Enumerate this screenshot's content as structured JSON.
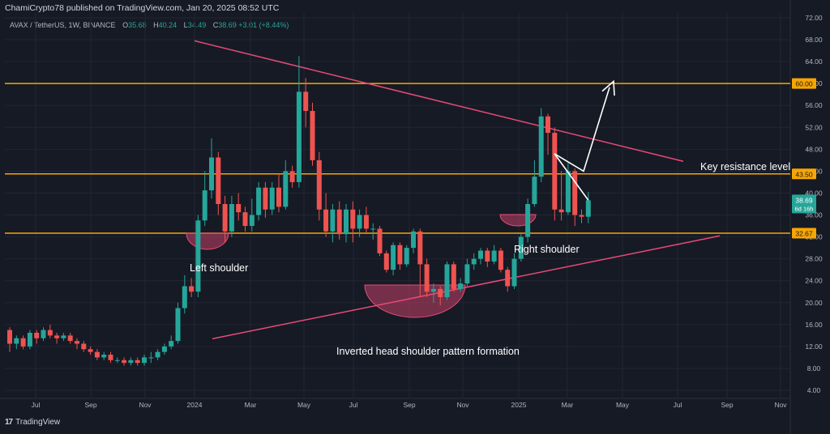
{
  "header": {
    "published": "ChamiCrypto78 published on TradingView.com, Jan 20, 2025 08:52 UTC",
    "symbol": "AVAX / TetherUS, 1W, BINANCE",
    "ohlc": [
      {
        "k": "O",
        "v": "35.68"
      },
      {
        "k": "H",
        "v": "40.24"
      },
      {
        "k": "L",
        "v": "34.49"
      },
      {
        "k": "C",
        "v": "38.69"
      }
    ],
    "change": "+3.01 (+8.44%)"
  },
  "footer": {
    "logo_text": "TradingView",
    "logo_mark": "17"
  },
  "colors": {
    "background": "#161a25",
    "up": "#26a69a",
    "down": "#ef5350",
    "orange": "#f7a600",
    "trend": "#e84a76",
    "grid": "#232632",
    "text": "#d1d4dc"
  },
  "chart_data": {
    "type": "candlestick",
    "ylim": [
      4,
      72
    ],
    "y_ticks": [
      "72.00",
      "68.00",
      "64.00",
      "60.00",
      "56.00",
      "52.00",
      "48.00",
      "44.00",
      "40.00",
      "36.00",
      "32.00",
      "28.00",
      "24.00",
      "20.00",
      "16.00",
      "12.00",
      "8.00",
      "4.00"
    ],
    "x_ticks": [
      "Jul",
      "Sep",
      "Nov",
      "2024",
      "Mar",
      "May",
      "Jul",
      "Sep",
      "Nov",
      "2025",
      "Mar",
      "May",
      "Jul",
      "Sep",
      "Nov"
    ],
    "candles": [
      [
        15,
        12.5,
        15.5,
        11
      ],
      [
        12.5,
        13.5,
        14,
        11.5
      ],
      [
        13.5,
        12,
        14,
        11.5
      ],
      [
        12,
        14.5,
        15,
        11.5
      ],
      [
        14.5,
        13.5,
        15,
        12.5
      ],
      [
        13.5,
        15,
        15.5,
        13
      ],
      [
        15,
        14,
        16,
        13.5
      ],
      [
        14,
        13.5,
        14.5,
        12.5
      ],
      [
        13.5,
        14,
        14.5,
        13
      ],
      [
        14,
        13,
        14.5,
        12.5
      ],
      [
        13,
        12.5,
        13.5,
        11.5
      ],
      [
        12.5,
        11.5,
        13,
        11
      ],
      [
        11.5,
        11,
        12,
        10.5
      ],
      [
        11,
        10,
        11.5,
        9.5
      ],
      [
        10,
        10.5,
        11,
        9.5
      ],
      [
        10.5,
        9.5,
        11,
        9
      ],
      [
        9.5,
        9.5,
        10,
        9
      ],
      [
        9.5,
        9,
        10,
        8.5
      ],
      [
        9,
        9.5,
        10,
        8.5
      ],
      [
        9.5,
        9,
        10,
        8.5
      ],
      [
        9,
        10,
        10.5,
        8.5
      ],
      [
        10,
        10,
        11,
        9
      ],
      [
        10,
        11,
        11.5,
        9.5
      ],
      [
        11,
        12,
        12.5,
        10.5
      ],
      [
        12,
        13,
        14,
        11.5
      ],
      [
        13,
        19,
        20,
        12.5
      ],
      [
        19,
        23,
        25,
        18
      ],
      [
        23,
        22,
        24.5,
        21
      ],
      [
        22,
        35,
        36,
        21
      ],
      [
        35,
        40.5,
        44,
        34
      ],
      [
        40.5,
        46.5,
        50,
        39
      ],
      [
        46.5,
        38,
        47.5,
        36
      ],
      [
        38,
        33,
        39.5,
        31
      ],
      [
        33,
        38,
        39.5,
        32
      ],
      [
        38,
        36.5,
        40,
        35
      ],
      [
        36.5,
        34,
        37.5,
        33
      ],
      [
        34,
        36,
        39,
        33
      ],
      [
        36,
        41,
        42,
        35
      ],
      [
        41,
        37,
        42,
        35.5
      ],
      [
        37,
        41,
        42,
        36
      ],
      [
        41,
        37.5,
        43.5,
        36.5
      ],
      [
        37.5,
        44,
        46,
        37
      ],
      [
        44,
        42,
        45,
        41
      ],
      [
        42,
        58.5,
        65,
        41
      ],
      [
        58.5,
        55,
        61,
        52
      ],
      [
        55,
        46,
        56.5,
        45
      ],
      [
        46,
        37,
        47.5,
        35
      ],
      [
        37,
        33,
        40,
        32
      ],
      [
        33,
        37,
        38,
        31
      ],
      [
        37,
        32.5,
        38.5,
        31.5
      ],
      [
        32.5,
        37,
        38,
        31
      ],
      [
        37,
        33.5,
        38.5,
        31
      ],
      [
        33.5,
        36,
        37,
        32
      ],
      [
        36,
        33.5,
        37.5,
        32.5
      ],
      [
        33.5,
        33.5,
        34.5,
        31.5
      ],
      [
        33.5,
        29,
        34,
        28.5
      ],
      [
        29,
        26,
        29.5,
        25.5
      ],
      [
        26,
        30.5,
        31,
        25
      ],
      [
        30.5,
        27,
        31,
        26
      ],
      [
        27,
        30,
        30.5,
        26.5
      ],
      [
        30,
        33,
        33.5,
        29
      ],
      [
        33,
        27,
        33.5,
        21
      ],
      [
        27,
        22,
        28,
        21
      ],
      [
        22,
        22.5,
        23.5,
        20
      ],
      [
        22.5,
        21,
        23,
        19.5
      ],
      [
        21,
        27,
        27.5,
        20.5
      ],
      [
        27,
        22.5,
        27.5,
        22
      ],
      [
        22.5,
        23.5,
        24.5,
        22
      ],
      [
        23.5,
        27,
        28,
        23
      ],
      [
        27,
        28,
        29,
        26
      ],
      [
        28,
        29.5,
        30,
        27
      ],
      [
        29.5,
        27.5,
        30,
        26.5
      ],
      [
        27.5,
        29.5,
        30.5,
        27
      ],
      [
        29.5,
        26,
        30,
        25.5
      ],
      [
        26,
        23,
        26.5,
        22
      ],
      [
        23,
        28,
        29,
        22.5
      ],
      [
        28,
        32,
        32.5,
        27.5
      ],
      [
        32,
        38,
        39,
        31
      ],
      [
        38,
        43,
        46,
        37.5
      ],
      [
        43,
        54,
        55.5,
        42
      ],
      [
        54,
        51,
        54.5,
        47
      ],
      [
        51,
        37,
        52,
        35
      ],
      [
        37,
        36.5,
        44,
        35
      ],
      [
        36.5,
        44,
        45.5,
        36
      ],
      [
        44,
        36,
        44.5,
        34
      ],
      [
        36,
        35.68,
        37,
        34.5
      ],
      [
        35.68,
        38.69,
        40.24,
        34.49
      ]
    ],
    "horizontal_levels": [
      {
        "value": 60.0,
        "label": "60.00"
      },
      {
        "value": 43.5,
        "label": "43.50"
      },
      {
        "value": 32.67,
        "label": "32.67"
      }
    ],
    "last_price": {
      "label": "38.69",
      "countdown": "6d 16h"
    },
    "annotations": [
      {
        "id": "left-shoulder",
        "text": "Left shoulder"
      },
      {
        "id": "right-shoulder",
        "text": "Right shoulder"
      },
      {
        "id": "key-resistance",
        "text": "Key resistance level"
      },
      {
        "id": "pattern",
        "text": "Inverted head shoulder pattern formation"
      }
    ]
  }
}
